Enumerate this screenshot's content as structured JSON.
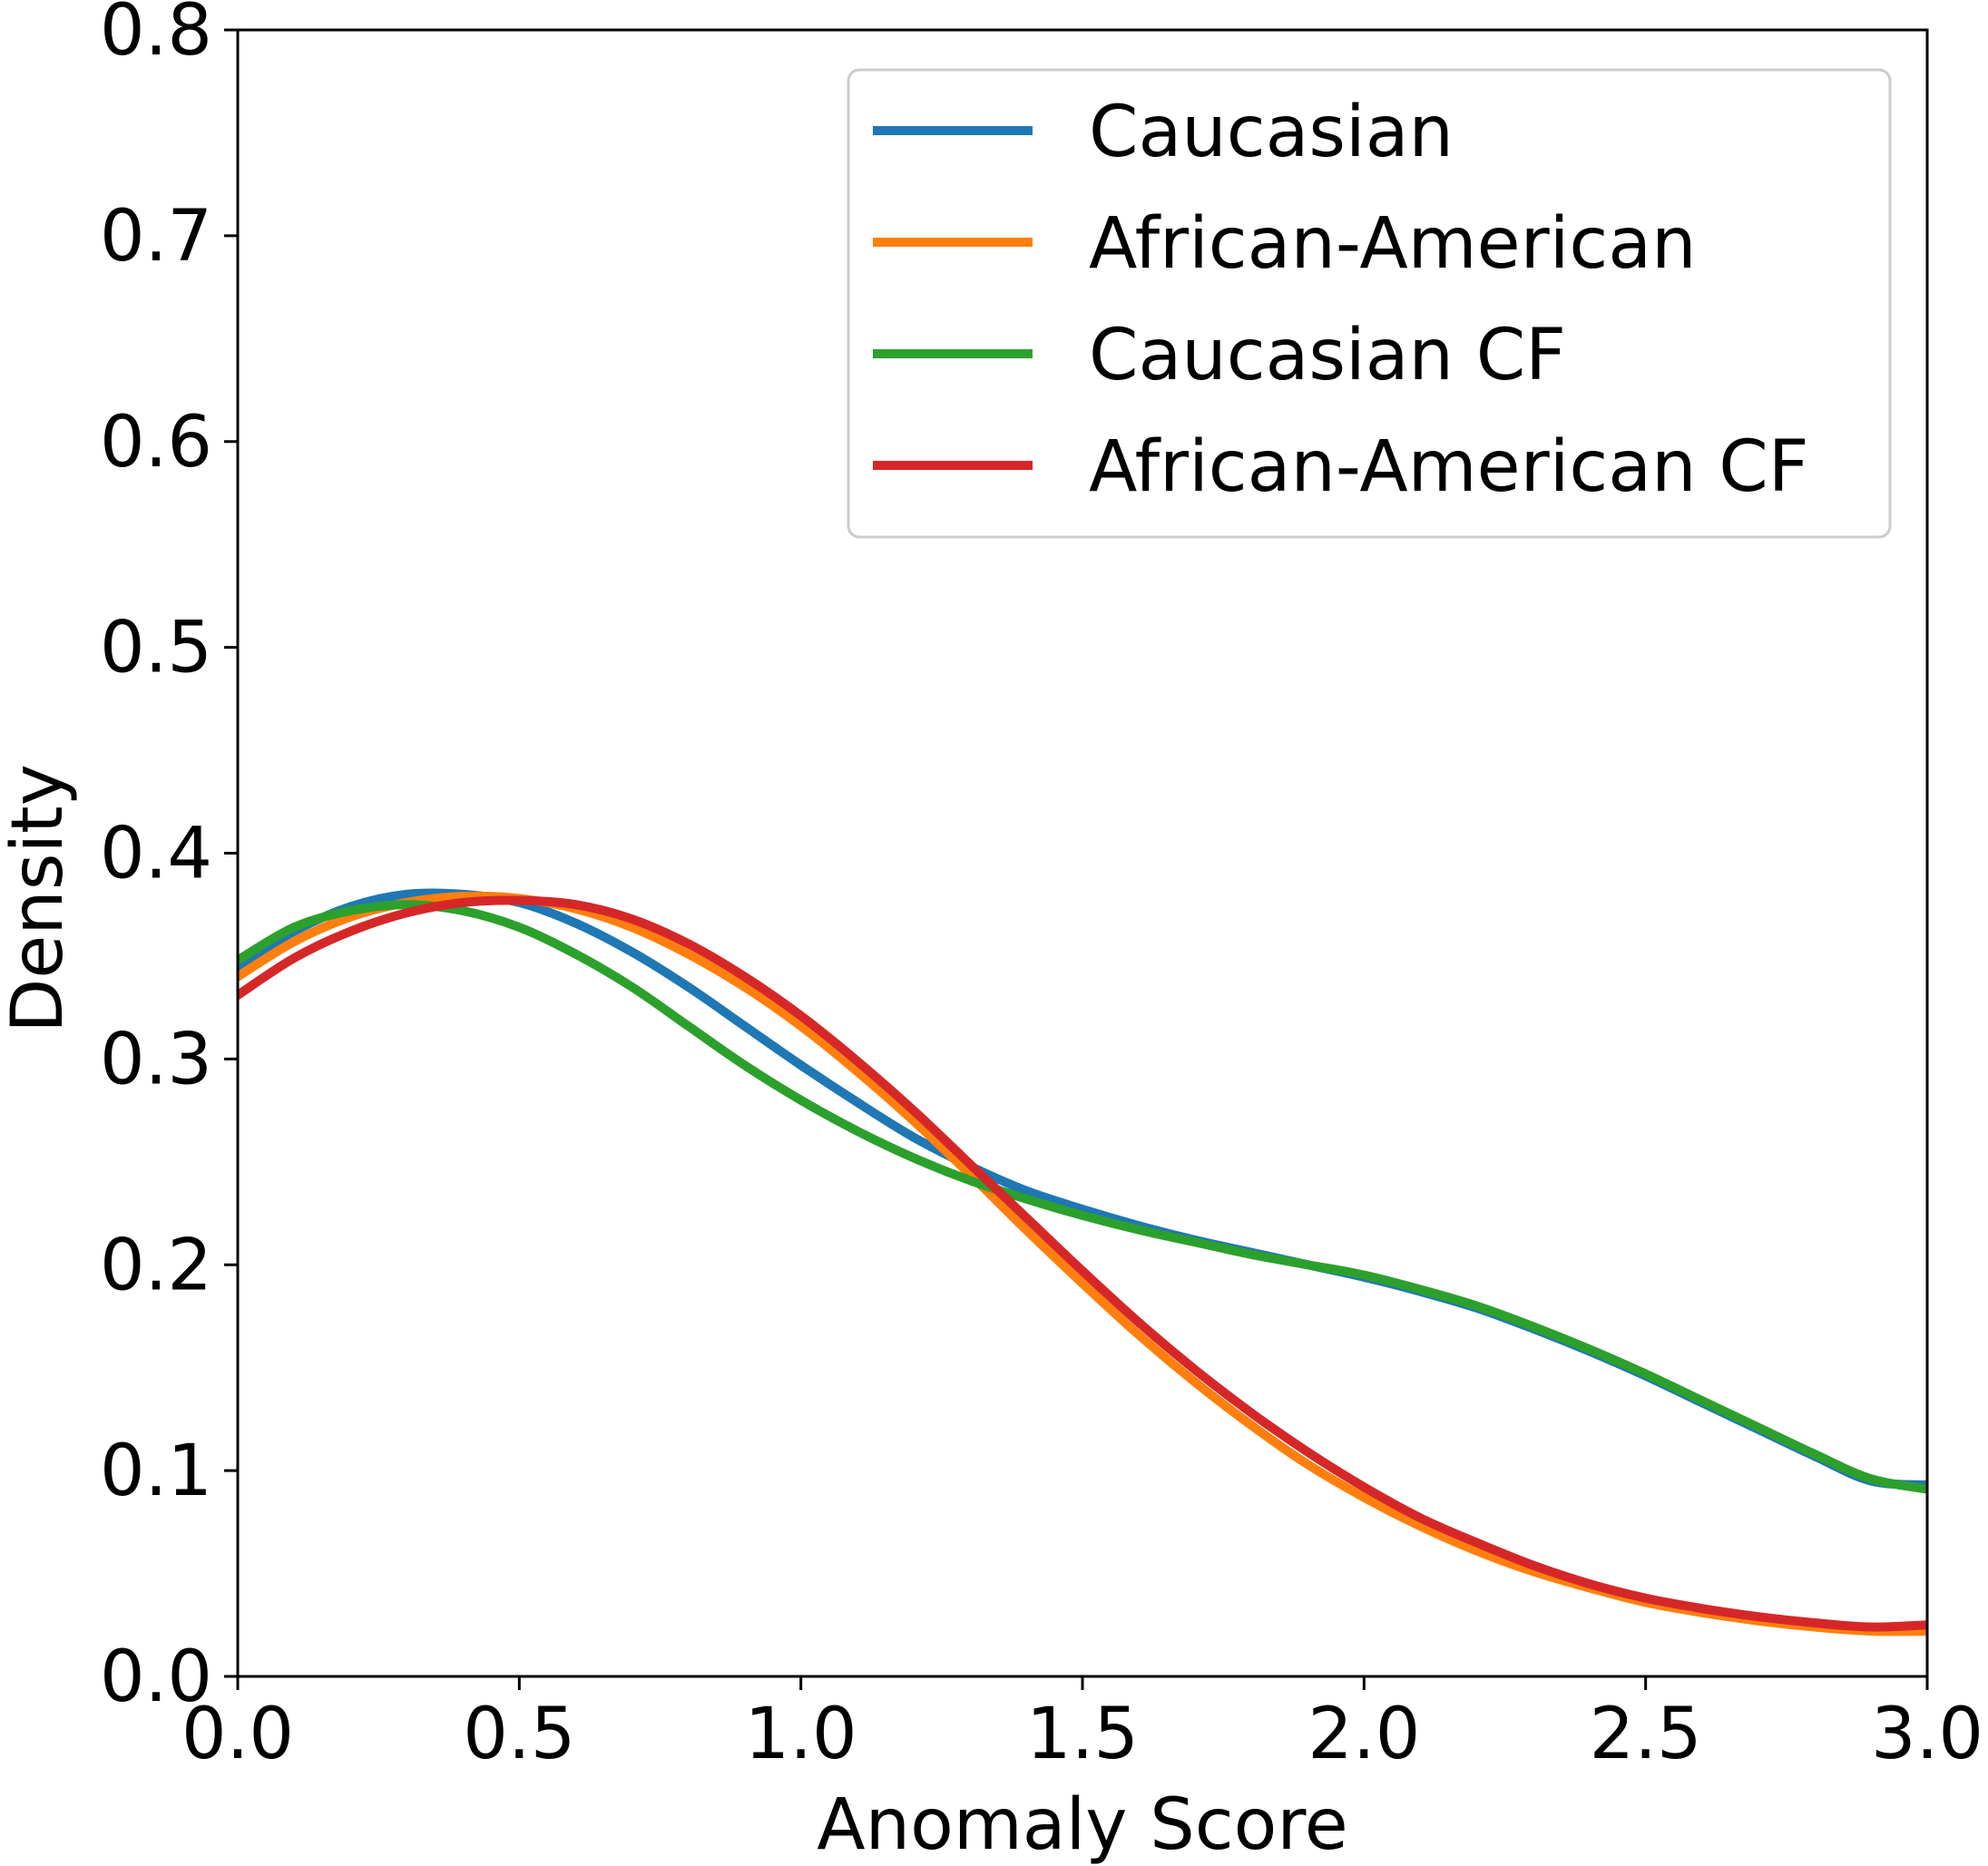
{
  "chart_data": {
    "type": "line",
    "title": "",
    "xlabel": "Anomaly Score",
    "ylabel": "Density",
    "xlim": [
      0.0,
      3.0
    ],
    "ylim": [
      0.0,
      0.8
    ],
    "xticks": [
      "0.0",
      "0.5",
      "1.0",
      "1.5",
      "2.0",
      "2.5",
      "3.0"
    ],
    "yticks": [
      "0.0",
      "0.1",
      "0.2",
      "0.3",
      "0.4",
      "0.5",
      "0.6",
      "0.7",
      "0.8"
    ],
    "grid": false,
    "legend_position": "top-right",
    "x": [
      0.0,
      0.1,
      0.2,
      0.3,
      0.4,
      0.5,
      0.6,
      0.7,
      0.8,
      0.9,
      1.0,
      1.1,
      1.2,
      1.3,
      1.4,
      1.5,
      1.6,
      1.7,
      1.8,
      1.9,
      2.0,
      2.1,
      2.2,
      2.3,
      2.4,
      2.5,
      2.6,
      2.7,
      2.8,
      2.9,
      3.0
    ],
    "series": [
      {
        "name": "Caucasian",
        "color": "#1f77b4",
        "values": [
          0.345,
          0.362,
          0.374,
          0.38,
          0.38,
          0.376,
          0.366,
          0.352,
          0.335,
          0.316,
          0.297,
          0.279,
          0.262,
          0.248,
          0.236,
          0.227,
          0.219,
          0.212,
          0.206,
          0.2,
          0.194,
          0.187,
          0.179,
          0.169,
          0.158,
          0.146,
          0.133,
          0.12,
          0.107,
          0.095,
          0.093
        ]
      },
      {
        "name": "African-American",
        "color": "#ff7f0e",
        "values": [
          0.34,
          0.357,
          0.369,
          0.376,
          0.379,
          0.378,
          0.373,
          0.364,
          0.351,
          0.335,
          0.316,
          0.294,
          0.27,
          0.244,
          0.217,
          0.191,
          0.166,
          0.143,
          0.122,
          0.103,
          0.087,
          0.073,
          0.061,
          0.051,
          0.043,
          0.036,
          0.031,
          0.027,
          0.024,
          0.022,
          0.022
        ]
      },
      {
        "name": "Caucasian CF",
        "color": "#2ca02c",
        "values": [
          0.348,
          0.364,
          0.372,
          0.375,
          0.372,
          0.364,
          0.351,
          0.335,
          0.316,
          0.297,
          0.28,
          0.265,
          0.252,
          0.241,
          0.232,
          0.224,
          0.217,
          0.211,
          0.205,
          0.2,
          0.195,
          0.188,
          0.18,
          0.17,
          0.159,
          0.147,
          0.134,
          0.121,
          0.108,
          0.096,
          0.091
        ]
      },
      {
        "name": "African-American CF",
        "color": "#d62728",
        "values": [
          0.331,
          0.349,
          0.362,
          0.371,
          0.376,
          0.377,
          0.375,
          0.368,
          0.356,
          0.34,
          0.321,
          0.299,
          0.275,
          0.249,
          0.223,
          0.197,
          0.172,
          0.149,
          0.128,
          0.109,
          0.092,
          0.077,
          0.065,
          0.054,
          0.045,
          0.038,
          0.033,
          0.029,
          0.026,
          0.024,
          0.025
        ]
      }
    ]
  }
}
